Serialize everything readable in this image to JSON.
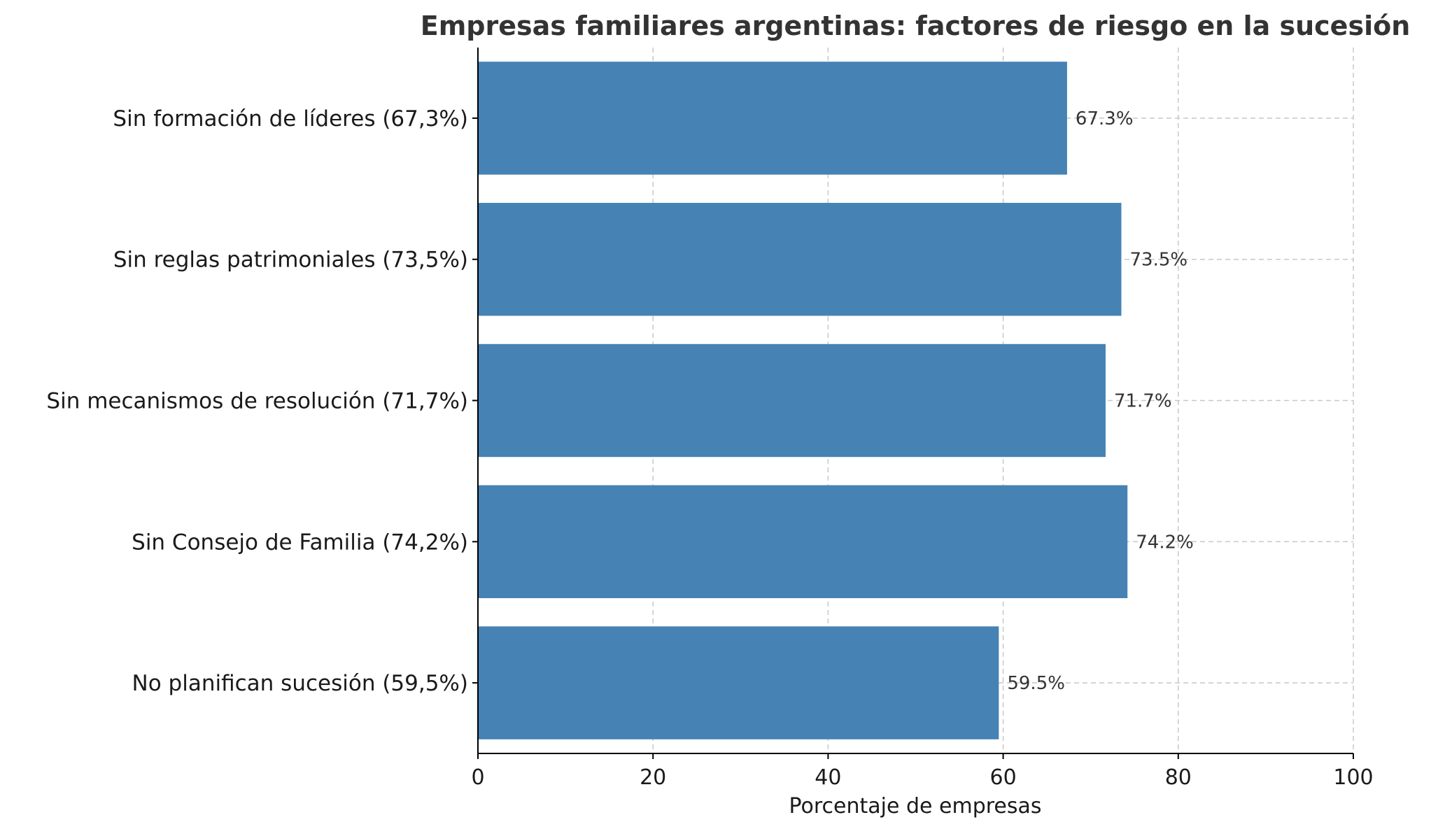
{
  "chart_data": {
    "type": "bar",
    "orientation": "horizontal",
    "title": "Empresas familiares argentinas: factores de riesgo en la sucesión",
    "xlabel": "Porcentaje de empresas",
    "ylabel": "",
    "xlim": [
      0,
      100
    ],
    "x_ticks": [
      0,
      20,
      40,
      60,
      80,
      100
    ],
    "grid": true,
    "bar_color": "#4682b4",
    "categories": [
      "Sin formación de líderes (67,3%)",
      "Sin reglas patrimoniales (73,5%)",
      "Sin mecanismos de resolución (71,7%)",
      "Sin Consejo de Familia (74,2%)",
      "No planifican sucesión (59,5%)"
    ],
    "values": [
      67.3,
      73.5,
      71.7,
      74.2,
      59.5
    ],
    "data_labels": [
      "67.3%",
      "73.5%",
      "71.7%",
      "74.2%",
      "59.5%"
    ]
  }
}
